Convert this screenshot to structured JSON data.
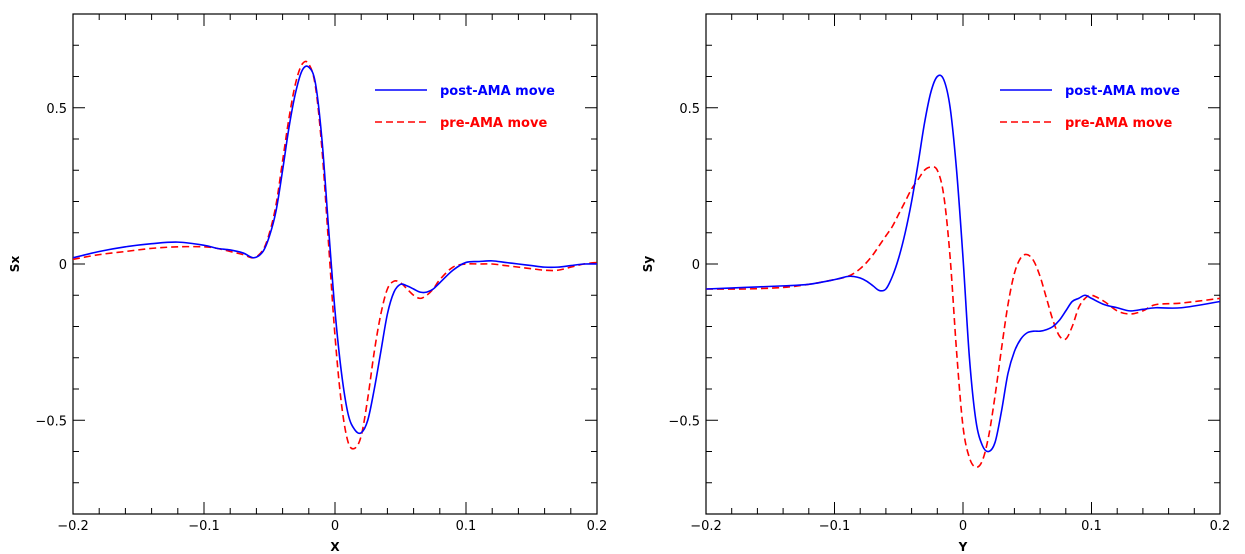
{
  "chart_data": [
    {
      "type": "line",
      "xlabel": "X",
      "ylabel": "Sx",
      "xlim": [
        -0.2,
        0.2
      ],
      "ylim": [
        -0.8,
        0.8
      ],
      "xticks": [
        -0.2,
        -0.1,
        0,
        0.1,
        0.2
      ],
      "xtick_labels": [
        "-0.2",
        "-0.1",
        "0",
        "0.1",
        "0.2"
      ],
      "yticks": [
        -0.5,
        0,
        0.5
      ],
      "ytick_labels": [
        "-0.5",
        "0",
        "0.5"
      ],
      "legend_position": "top-right",
      "series": [
        {
          "name": "post-AMA move",
          "color": "#0000ff",
          "style": "solid",
          "x": [
            -0.2,
            -0.18,
            -0.16,
            -0.14,
            -0.12,
            -0.1,
            -0.09,
            -0.08,
            -0.07,
            -0.062,
            -0.055,
            -0.05,
            -0.045,
            -0.04,
            -0.035,
            -0.03,
            -0.025,
            -0.02,
            -0.015,
            -0.01,
            -0.005,
            0,
            0.005,
            0.01,
            0.015,
            0.02,
            0.025,
            0.03,
            0.035,
            0.04,
            0.045,
            0.05,
            0.055,
            0.06,
            0.065,
            0.07,
            0.075,
            0.08,
            0.09,
            0.1,
            0.11,
            0.12,
            0.13,
            0.14,
            0.15,
            0.16,
            0.17,
            0.18,
            0.19,
            0.2
          ],
          "y": [
            0.02,
            0.04,
            0.055,
            0.065,
            0.07,
            0.06,
            0.05,
            0.045,
            0.035,
            0.02,
            0.04,
            0.09,
            0.17,
            0.3,
            0.44,
            0.55,
            0.62,
            0.63,
            0.58,
            0.4,
            0.12,
            -0.15,
            -0.35,
            -0.48,
            -0.53,
            -0.54,
            -0.5,
            -0.4,
            -0.28,
            -0.16,
            -0.09,
            -0.065,
            -0.07,
            -0.08,
            -0.09,
            -0.09,
            -0.08,
            -0.06,
            -0.02,
            0.005,
            0.008,
            0.01,
            0.005,
            0.0,
            -0.005,
            -0.01,
            -0.01,
            -0.005,
            0.0,
            0.0
          ]
        },
        {
          "name": "pre-AMA move",
          "color": "#ff0000",
          "style": "dashed",
          "x": [
            -0.2,
            -0.18,
            -0.16,
            -0.14,
            -0.12,
            -0.1,
            -0.09,
            -0.08,
            -0.07,
            -0.062,
            -0.055,
            -0.05,
            -0.045,
            -0.04,
            -0.035,
            -0.03,
            -0.025,
            -0.02,
            -0.015,
            -0.01,
            -0.005,
            0,
            0.005,
            0.01,
            0.015,
            0.02,
            0.025,
            0.03,
            0.035,
            0.04,
            0.045,
            0.05,
            0.055,
            0.06,
            0.065,
            0.07,
            0.075,
            0.08,
            0.09,
            0.1,
            0.11,
            0.12,
            0.13,
            0.14,
            0.15,
            0.16,
            0.17,
            0.18,
            0.19,
            0.2
          ],
          "y": [
            0.015,
            0.03,
            0.04,
            0.05,
            0.055,
            0.055,
            0.05,
            0.04,
            0.03,
            0.02,
            0.045,
            0.1,
            0.19,
            0.33,
            0.47,
            0.58,
            0.64,
            0.64,
            0.57,
            0.37,
            0.07,
            -0.23,
            -0.45,
            -0.57,
            -0.59,
            -0.55,
            -0.43,
            -0.28,
            -0.16,
            -0.08,
            -0.055,
            -0.06,
            -0.08,
            -0.1,
            -0.11,
            -0.1,
            -0.08,
            -0.05,
            -0.01,
            0.0,
            0.0,
            0.0,
            -0.005,
            -0.01,
            -0.015,
            -0.02,
            -0.02,
            -0.01,
            0.0,
            0.005
          ]
        }
      ]
    },
    {
      "type": "line",
      "xlabel": "Y",
      "ylabel": "Sy",
      "xlim": [
        -0.2,
        0.2
      ],
      "ylim": [
        -0.8,
        0.8
      ],
      "xticks": [
        -0.2,
        -0.1,
        0,
        0.1,
        0.2
      ],
      "xtick_labels": [
        "-0.2",
        "-0.1",
        "0",
        "0.1",
        "0.2"
      ],
      "yticks": [
        -0.5,
        0,
        0.5
      ],
      "ytick_labels": [
        "-0.5",
        "0",
        "0.5"
      ],
      "legend_position": "top-right",
      "series": [
        {
          "name": "post-AMA move",
          "color": "#0000ff",
          "style": "solid",
          "x": [
            -0.2,
            -0.17,
            -0.14,
            -0.12,
            -0.1,
            -0.09,
            -0.085,
            -0.08,
            -0.075,
            -0.07,
            -0.065,
            -0.06,
            -0.055,
            -0.05,
            -0.045,
            -0.04,
            -0.035,
            -0.03,
            -0.025,
            -0.02,
            -0.015,
            -0.01,
            -0.005,
            0,
            0.005,
            0.01,
            0.015,
            0.02,
            0.025,
            0.03,
            0.035,
            0.04,
            0.045,
            0.05,
            0.055,
            0.06,
            0.065,
            0.07,
            0.075,
            0.08,
            0.085,
            0.09,
            0.095,
            0.1,
            0.11,
            0.12,
            0.13,
            0.14,
            0.15,
            0.17,
            0.2
          ],
          "y": [
            -0.08,
            -0.075,
            -0.07,
            -0.065,
            -0.05,
            -0.04,
            -0.04,
            -0.045,
            -0.055,
            -0.07,
            -0.085,
            -0.08,
            -0.04,
            0.02,
            0.1,
            0.2,
            0.32,
            0.45,
            0.55,
            0.6,
            0.59,
            0.5,
            0.3,
            0.02,
            -0.3,
            -0.5,
            -0.58,
            -0.6,
            -0.57,
            -0.47,
            -0.35,
            -0.28,
            -0.24,
            -0.22,
            -0.215,
            -0.215,
            -0.21,
            -0.2,
            -0.18,
            -0.15,
            -0.12,
            -0.11,
            -0.1,
            -0.11,
            -0.13,
            -0.14,
            -0.15,
            -0.145,
            -0.14,
            -0.14,
            -0.12
          ]
        },
        {
          "name": "pre-AMA move",
          "color": "#ff0000",
          "style": "dashed",
          "x": [
            -0.2,
            -0.17,
            -0.14,
            -0.12,
            -0.1,
            -0.09,
            -0.085,
            -0.08,
            -0.075,
            -0.07,
            -0.065,
            -0.06,
            -0.055,
            -0.05,
            -0.045,
            -0.04,
            -0.035,
            -0.03,
            -0.025,
            -0.02,
            -0.015,
            -0.01,
            -0.005,
            0,
            0.005,
            0.01,
            0.015,
            0.02,
            0.025,
            0.03,
            0.035,
            0.04,
            0.045,
            0.05,
            0.055,
            0.06,
            0.065,
            0.07,
            0.075,
            0.08,
            0.085,
            0.09,
            0.095,
            0.1,
            0.11,
            0.12,
            0.13,
            0.14,
            0.15,
            0.17,
            0.2
          ],
          "y": [
            -0.08,
            -0.08,
            -0.075,
            -0.065,
            -0.05,
            -0.04,
            -0.03,
            -0.015,
            0.005,
            0.03,
            0.06,
            0.09,
            0.12,
            0.16,
            0.2,
            0.24,
            0.27,
            0.3,
            0.31,
            0.3,
            0.22,
            0.02,
            -0.28,
            -0.52,
            -0.62,
            -0.65,
            -0.63,
            -0.55,
            -0.42,
            -0.27,
            -0.13,
            -0.03,
            0.02,
            0.03,
            0.01,
            -0.04,
            -0.11,
            -0.18,
            -0.23,
            -0.24,
            -0.2,
            -0.14,
            -0.11,
            -0.1,
            -0.12,
            -0.15,
            -0.16,
            -0.15,
            -0.13,
            -0.125,
            -0.11
          ]
        }
      ]
    }
  ]
}
